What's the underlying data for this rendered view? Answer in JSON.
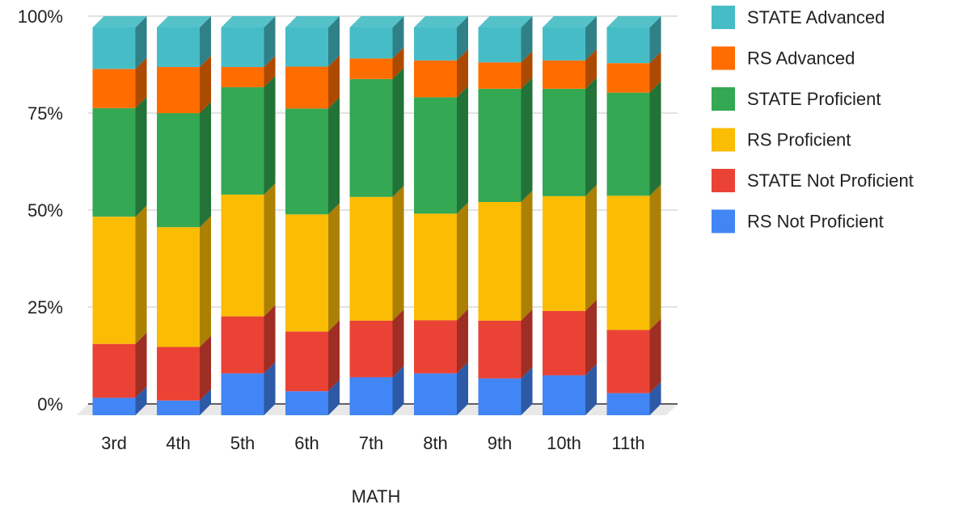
{
  "chart_data": {
    "type": "bar",
    "stacked": true,
    "three_d": true,
    "title": "",
    "xlabel": "MATH",
    "ylabel": "",
    "ylim": [
      0,
      100
    ],
    "y_ticks": [
      "0%",
      "25%",
      "50%",
      "75%",
      "100%"
    ],
    "y_tick_values": [
      0,
      25,
      50,
      75,
      100
    ],
    "categories": [
      "3rd",
      "4th",
      "5th",
      "6th",
      "7th",
      "8th",
      "9th",
      "10th",
      "11th"
    ],
    "legend_position": "right",
    "grid": true,
    "series": [
      {
        "name": "RS Not Proficient",
        "color": "#4285F4",
        "values": [
          4.5,
          3.8,
          10.8,
          6.2,
          9.8,
          10.8,
          9.5,
          10.3,
          5.7
        ]
      },
      {
        "name": "STATE Not Proficient",
        "color": "#EA4335",
        "values": [
          13.9,
          13.8,
          14.7,
          15.4,
          14.6,
          13.7,
          14.9,
          16.6,
          16.3
        ]
      },
      {
        "name": "RS Proficient",
        "color": "#FBBC04",
        "values": [
          32.8,
          30.9,
          31.4,
          30.2,
          31.9,
          27.5,
          30.6,
          29.6,
          34.6
        ]
      },
      {
        "name": "STATE Proficient",
        "color": "#34A853",
        "values": [
          28.0,
          29.4,
          27.7,
          27.3,
          30.4,
          30.0,
          29.2,
          27.7,
          26.6
        ]
      },
      {
        "name": "RS Advanced",
        "color": "#FF6D01",
        "values": [
          10.1,
          11.9,
          5.2,
          10.8,
          5.3,
          9.5,
          6.8,
          7.3,
          7.6
        ]
      },
      {
        "name": "STATE Advanced",
        "color": "#46BDC6",
        "values": [
          10.7,
          10.2,
          10.2,
          10.1,
          8.0,
          8.5,
          9.0,
          8.5,
          9.2
        ]
      }
    ],
    "legend_order": [
      "STATE Advanced",
      "RS Advanced",
      "STATE Proficient",
      "RS Proficient",
      "STATE Not Proficient",
      "RS Not Proficient"
    ]
  }
}
